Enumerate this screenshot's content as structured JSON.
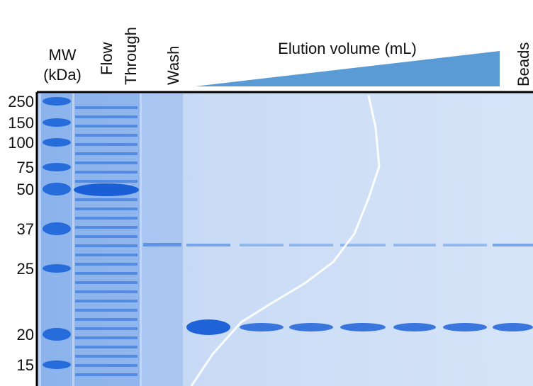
{
  "header": {
    "mw_label": "MW",
    "mw_unit": "(kDa)",
    "lanes": [
      "Flow",
      "Through",
      "Wash"
    ],
    "elution": "Elution volume (mL)",
    "beads": "Beads"
  },
  "markers": [
    "250",
    "150",
    "100",
    "75",
    "50",
    "37",
    "25",
    "20",
    "15"
  ]
}
